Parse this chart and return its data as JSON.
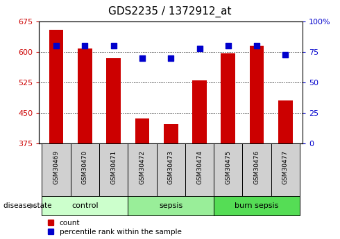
{
  "title": "GDS2235 / 1372912_at",
  "samples": [
    "GSM30469",
    "GSM30470",
    "GSM30471",
    "GSM30472",
    "GSM30473",
    "GSM30474",
    "GSM30475",
    "GSM30476",
    "GSM30477"
  ],
  "count_values": [
    655,
    608,
    585,
    437,
    422,
    530,
    597,
    615,
    480
  ],
  "percentile_values": [
    80,
    80,
    80,
    70,
    70,
    78,
    80,
    80,
    73
  ],
  "ylim_left": [
    375,
    675
  ],
  "ylim_right": [
    0,
    100
  ],
  "yticks_left": [
    375,
    450,
    525,
    600,
    675
  ],
  "yticks_right": [
    0,
    25,
    50,
    75,
    100
  ],
  "groups": [
    {
      "label": "control",
      "indices": [
        0,
        1,
        2
      ],
      "color": "#ccffcc"
    },
    {
      "label": "sepsis",
      "indices": [
        3,
        4,
        5
      ],
      "color": "#99ee99"
    },
    {
      "label": "burn sepsis",
      "indices": [
        6,
        7,
        8
      ],
      "color": "#55dd55"
    }
  ],
  "bar_color": "#cc0000",
  "scatter_color": "#0000cc",
  "tick_color_left": "#cc0000",
  "tick_color_right": "#0000cc",
  "sample_box_color": "#d0d0d0",
  "legend_count_label": "count",
  "legend_percentile_label": "percentile rank within the sample",
  "disease_state_label": "disease state",
  "bar_width": 0.5,
  "bar_bottom": 375,
  "scatter_size": 30
}
